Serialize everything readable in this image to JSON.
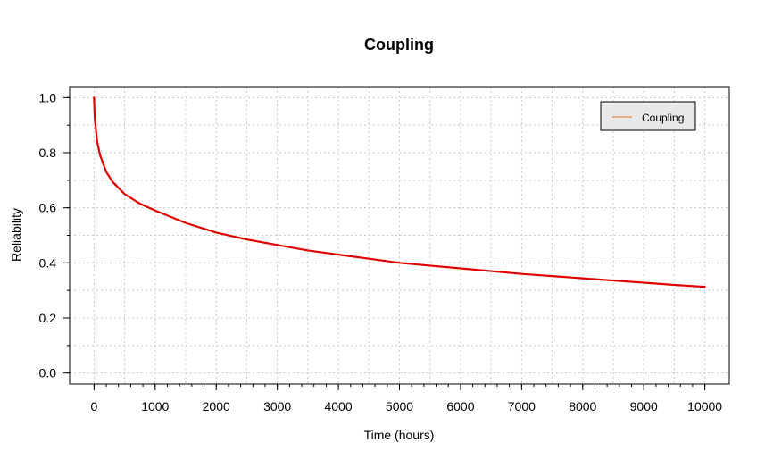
{
  "chart_data": {
    "type": "line",
    "title": "Coupling",
    "xlabel": "Time (hours)",
    "ylabel": "Reliability",
    "xlim": [
      -400,
      10400
    ],
    "ylim": [
      -0.04,
      1.04
    ],
    "x_ticks": [
      0,
      1000,
      2000,
      3000,
      4000,
      5000,
      6000,
      7000,
      8000,
      9000,
      10000
    ],
    "x_tick_labels": [
      "0",
      "1000",
      "2000",
      "3000",
      "4000",
      "5000",
      "6000",
      "7000",
      "8000",
      "9000",
      "10000"
    ],
    "y_ticks": [
      0.0,
      0.2,
      0.4,
      0.6,
      0.8,
      1.0
    ],
    "y_tick_labels": [
      "0.0",
      "0.2",
      "0.4",
      "0.6",
      "0.8",
      "1.0"
    ],
    "grid": true,
    "legend_position": "top-right",
    "series": [
      {
        "name": "Coupling",
        "color": "#e00000",
        "legend_color": "#e07030",
        "x": [
          0,
          10,
          50,
          100,
          200,
          300,
          500,
          750,
          1000,
          1500,
          2000,
          2500,
          3000,
          3500,
          4000,
          4500,
          5000,
          5500,
          6000,
          6500,
          7000,
          7500,
          8000,
          8500,
          9000,
          9500,
          10000
        ],
        "y": [
          1.0,
          0.93,
          0.84,
          0.79,
          0.73,
          0.695,
          0.65,
          0.615,
          0.59,
          0.545,
          0.51,
          0.485,
          0.465,
          0.445,
          0.43,
          0.415,
          0.4,
          0.39,
          0.38,
          0.37,
          0.36,
          0.352,
          0.344,
          0.336,
          0.328,
          0.32,
          0.313
        ]
      }
    ]
  }
}
